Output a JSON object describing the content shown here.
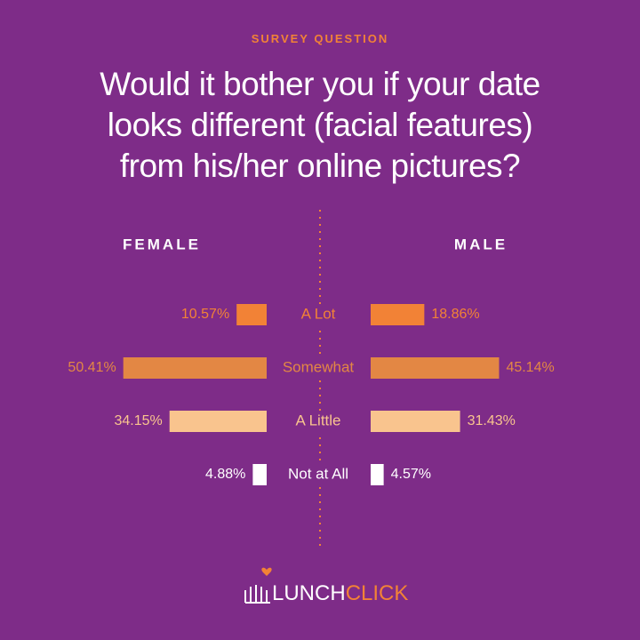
{
  "chart_data": {
    "type": "butterfly-bar",
    "kicker": "SURVEY QUESTION",
    "title": "Would it bother you if your date looks different (facial features) from his/her online pictures?",
    "categories": [
      "A Lot",
      "Somewhat",
      "A Little",
      "Not at All"
    ],
    "colors": [
      "#f28236",
      "#e38744",
      "#f9c48e",
      "#ffffff"
    ],
    "series": [
      {
        "name": "FEMALE",
        "values": [
          10.57,
          50.41,
          34.15,
          4.88
        ],
        "value_labels": [
          "10.57%",
          "50.41%",
          "34.15%",
          "4.88%"
        ]
      },
      {
        "name": "MALE",
        "values": [
          18.86,
          45.14,
          31.43,
          4.57
        ],
        "value_labels": [
          "18.86%",
          "45.14%",
          "31.43%",
          "4.57%"
        ]
      }
    ]
  },
  "brand": {
    "first": "LUNCH",
    "second": "CLICK"
  }
}
